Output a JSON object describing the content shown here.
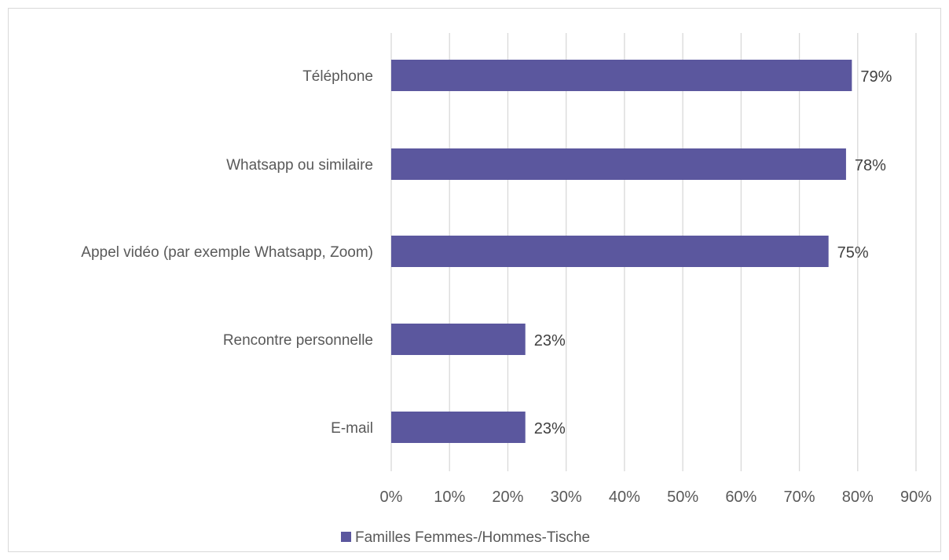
{
  "chart_data": {
    "type": "bar",
    "orientation": "horizontal",
    "categories": [
      "Téléphone",
      "Whatsapp ou similaire",
      "Appel vidéo (par exemple Whatsapp, Zoom)",
      "Rencontre personnelle",
      "E-mail"
    ],
    "series": [
      {
        "name": "Familles Femmes-/Hommes-Tische",
        "values": [
          79,
          78,
          75,
          23,
          23
        ],
        "value_labels": [
          "79%",
          "78%",
          "75%",
          "23%",
          "23%"
        ],
        "color": "#5b579e"
      }
    ],
    "xlim": [
      0,
      90
    ],
    "x_ticks": [
      0,
      10,
      20,
      30,
      40,
      50,
      60,
      70,
      80,
      90
    ],
    "x_tick_labels": [
      "0%",
      "10%",
      "20%",
      "30%",
      "40%",
      "50%",
      "60%",
      "70%",
      "80%",
      "90%"
    ],
    "grid": true,
    "legend_position": "bottom",
    "colors": {
      "gridline": "#d9d9d9",
      "bar": "#5b579e"
    }
  }
}
